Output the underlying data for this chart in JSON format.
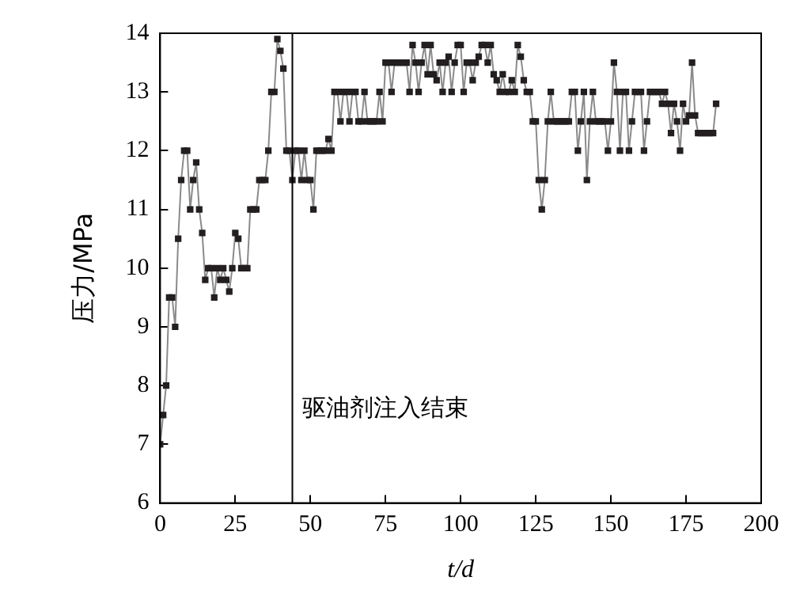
{
  "chart_data": {
    "type": "line",
    "xlabel": "t/d",
    "ylabel": "压力/MPa",
    "x": [
      0,
      1,
      2,
      3,
      4,
      5,
      6,
      7,
      8,
      9,
      10,
      11,
      12,
      13,
      14,
      15,
      16,
      17,
      18,
      19,
      20,
      21,
      22,
      23,
      24,
      25,
      26,
      27,
      28,
      29,
      30,
      31,
      32,
      33,
      34,
      35,
      36,
      37,
      38,
      39,
      40,
      41,
      42,
      43,
      44,
      45,
      46,
      47,
      48,
      49,
      50,
      51,
      52,
      53,
      54,
      55,
      56,
      57,
      58,
      59,
      60,
      61,
      62,
      63,
      64,
      65,
      66,
      67,
      68,
      69,
      70,
      71,
      72,
      73,
      74,
      75,
      76,
      77,
      78,
      79,
      80,
      81,
      82,
      83,
      84,
      85,
      86,
      87,
      88,
      89,
      90,
      91,
      92,
      93,
      94,
      95,
      96,
      97,
      98,
      99,
      100,
      101,
      102,
      103,
      104,
      105,
      106,
      107,
      108,
      109,
      110,
      111,
      112,
      113,
      114,
      115,
      116,
      117,
      118,
      119,
      120,
      121,
      122,
      123,
      124,
      125,
      126,
      127,
      128,
      129,
      130,
      131,
      132,
      133,
      134,
      135,
      136,
      137,
      138,
      139,
      140,
      141,
      142,
      143,
      144,
      145,
      146,
      147,
      148,
      149,
      150,
      151,
      152,
      153,
      154,
      155,
      156,
      157,
      158,
      159,
      160,
      161,
      162,
      163,
      164,
      165,
      166,
      167,
      168,
      169,
      170,
      171,
      172,
      173,
      174,
      175,
      176,
      177,
      178,
      179,
      180,
      181,
      182,
      183,
      184,
      185
    ],
    "series": [
      {
        "color": "#231f20",
        "values": [
          7.0,
          7.5,
          8.0,
          9.5,
          9.5,
          9.0,
          10.5,
          11.5,
          12.0,
          12.0,
          11.0,
          11.5,
          11.8,
          11.0,
          10.6,
          9.8,
          10.0,
          10.0,
          9.5,
          10.0,
          9.8,
          10.0,
          9.8,
          9.6,
          10.0,
          10.6,
          10.5,
          10.0,
          10.0,
          10.0,
          11.0,
          11.0,
          11.0,
          11.5,
          11.5,
          11.5,
          12.0,
          13.0,
          13.0,
          13.9,
          13.7,
          13.4,
          12.0,
          12.0,
          11.5,
          12.0,
          12.0,
          11.5,
          12.0,
          11.5,
          11.5,
          11.0,
          12.0,
          12.0,
          12.0,
          12.0,
          12.2,
          12.0,
          13.0,
          13.0,
          12.5,
          13.0,
          13.0,
          12.5,
          13.0,
          13.0,
          12.5,
          12.5,
          13.0,
          12.5,
          12.5,
          12.5,
          12.5,
          13.0,
          12.5,
          13.5,
          13.5,
          13.0,
          13.5,
          13.5,
          13.5,
          13.5,
          13.5,
          13.0,
          13.8,
          13.5,
          13.0,
          13.5,
          13.8,
          13.3,
          13.8,
          13.3,
          13.2,
          13.5,
          13.0,
          13.5,
          13.6,
          13.0,
          13.5,
          13.8,
          13.8,
          13.0,
          13.5,
          13.5,
          13.2,
          13.5,
          13.6,
          13.8,
          13.8,
          13.5,
          13.8,
          13.3,
          13.2,
          13.0,
          13.3,
          13.0,
          13.0,
          13.2,
          13.0,
          13.8,
          13.6,
          13.2,
          13.0,
          13.0,
          12.5,
          12.5,
          11.5,
          11.0,
          11.5,
          12.5,
          13.0,
          12.5,
          12.5,
          12.5,
          12.5,
          12.5,
          12.5,
          13.0,
          13.0,
          12.0,
          12.5,
          13.0,
          11.5,
          12.5,
          13.0,
          12.5,
          12.5,
          12.5,
          12.5,
          12.0,
          12.5,
          13.5,
          13.0,
          12.0,
          13.0,
          13.0,
          12.0,
          12.5,
          13.0,
          13.0,
          13.0,
          12.0,
          12.5,
          13.0,
          13.0,
          13.0,
          13.0,
          12.8,
          13.0,
          12.8,
          12.3,
          12.8,
          12.5,
          12.0,
          12.8,
          12.5,
          12.6,
          13.5,
          12.6,
          12.3,
          12.3,
          12.3,
          12.3,
          12.3,
          12.3,
          12.8
        ]
      }
    ],
    "xlim": [
      0,
      200
    ],
    "xticks": [
      0,
      25,
      50,
      75,
      100,
      125,
      150,
      175,
      200
    ],
    "ylim": [
      6,
      14
    ],
    "yticks": [
      6,
      7,
      8,
      9,
      10,
      11,
      12,
      13,
      14
    ],
    "marker": "square",
    "line_style": "solid",
    "grid": false,
    "legend": false,
    "ref_lines": [
      {
        "axis": "x",
        "value": 44,
        "label": "驱油剂注入结束",
        "color": "#000000"
      }
    ]
  }
}
